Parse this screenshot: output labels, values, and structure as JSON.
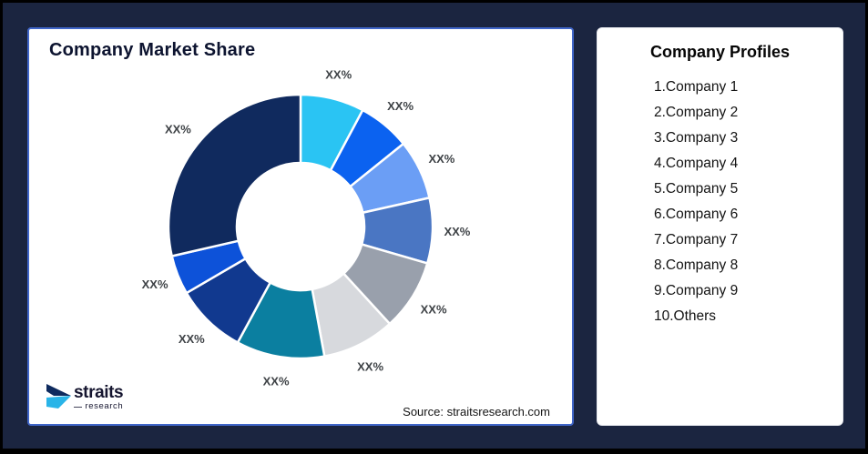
{
  "frame": {
    "background": "#1b2540",
    "border_color": "#000000"
  },
  "chart_panel": {
    "title": "Company Market Share",
    "title_color": "#0d1430",
    "border_color": "#4066c9",
    "source_text": "Source: straitsresearch.com"
  },
  "logo": {
    "brand": "straits",
    "brand_sub": "research",
    "icon_top_color": "#0e2a5e",
    "icon_bottom_color": "#29b4e8",
    "text_color": "#15152f"
  },
  "profiles_panel": {
    "title": "Company Profiles",
    "items": [
      "1.Company 1",
      "2.Company 2",
      "3.Company 3",
      "4.Company 4",
      "5.Company 5",
      "6.Company 6",
      "7.Company 7",
      "8.Company 8",
      "9.Company 9",
      "10.Others"
    ]
  },
  "chart_data": {
    "type": "pie",
    "subtype": "donut",
    "title": "Company Market Share",
    "label_color": "#3e4246",
    "slice_gap_color": "#ffffff",
    "start_angle_deg": 0,
    "direction": "clockwise",
    "legend_position": "none",
    "segments": [
      {
        "label": "XX%",
        "value_pct_est": 7.8,
        "color": "#2AC4F3"
      },
      {
        "label": "XX%",
        "value_pct_est": 6.4,
        "color": "#0B62F0"
      },
      {
        "label": "XX%",
        "value_pct_est": 7.3,
        "color": "#6B9EF5"
      },
      {
        "label": "XX%",
        "value_pct_est": 8.0,
        "color": "#4A76C3"
      },
      {
        "label": "XX%",
        "value_pct_est": 8.7,
        "color": "#99A0AC"
      },
      {
        "label": "XX%",
        "value_pct_est": 8.9,
        "color": "#D7D9DD"
      },
      {
        "label": "XX%",
        "value_pct_est": 10.8,
        "color": "#0B7FA0"
      },
      {
        "label": "XX%",
        "value_pct_est": 8.7,
        "color": "#11398F"
      },
      {
        "label": "XX%",
        "value_pct_est": 4.8,
        "color": "#0D52D9"
      },
      {
        "label": "XX%",
        "value_pct_est": 28.6,
        "color": "#102A5E"
      }
    ]
  }
}
